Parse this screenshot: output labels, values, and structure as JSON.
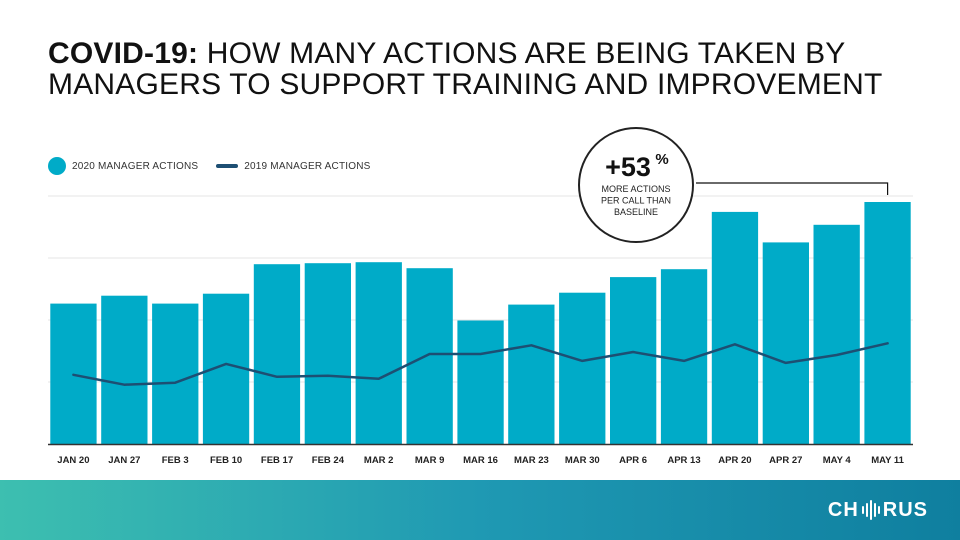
{
  "header": {
    "title_strong": "COVID-19:",
    "title_rest": " HOW MANY ACTIONS ARE BEING TAKEN BY MANAGERS TO SUPPORT TRAINING AND IMPROVEMENT"
  },
  "logo": {
    "left": "CH",
    "right": "RUS",
    "icon": "sound-wave-icon"
  },
  "colors": {
    "bar": "#00abc8",
    "line": "#1d4f73",
    "footer_start": "#3dbfb0",
    "footer_end": "#0f7f9f"
  },
  "chart_data": {
    "type": "bar",
    "title": "COVID-19: HOW MANY ACTIONS ARE BEING TAKEN BY MANAGERS TO SUPPORT TRAINING AND IMPROVEMENT",
    "xlabel": "",
    "ylabel": "",
    "ylim": [
      0,
      100
    ],
    "grid": true,
    "legend_position": "top-left",
    "categories": [
      "JAN 20",
      "JAN 27",
      "FEB 3",
      "FEB 10",
      "FEB 17",
      "FEB 24",
      "MAR 2",
      "MAR 9",
      "MAR 16",
      "MAR 23",
      "MAR 30",
      "APR 6",
      "APR 13",
      "APR 20",
      "APR 27",
      "MAY 4",
      "MAY 11"
    ],
    "series": [
      {
        "name": "2020 MANAGER ACTIONS",
        "type": "bar",
        "values": [
          56.6,
          59.8,
          56.6,
          60.6,
          72.5,
          72.9,
          73.3,
          70.9,
          49.8,
          56.2,
          61.0,
          67.3,
          70.5,
          93.6,
          81.3,
          88.4,
          97.6
        ]
      },
      {
        "name": "2019 MANAGER ACTIONS",
        "type": "line",
        "values": [
          27.9,
          23.9,
          24.7,
          32.3,
          27.1,
          27.5,
          26.3,
          36.3,
          36.3,
          39.8,
          33.5,
          37.1,
          33.5,
          40.2,
          32.7,
          35.9,
          40.6
        ]
      }
    ],
    "annotation": {
      "value": "+53",
      "suffix": "%",
      "line1": "MORE ACTIONS",
      "line2": "PER CALL THAN",
      "line3": "BASELINE"
    }
  }
}
